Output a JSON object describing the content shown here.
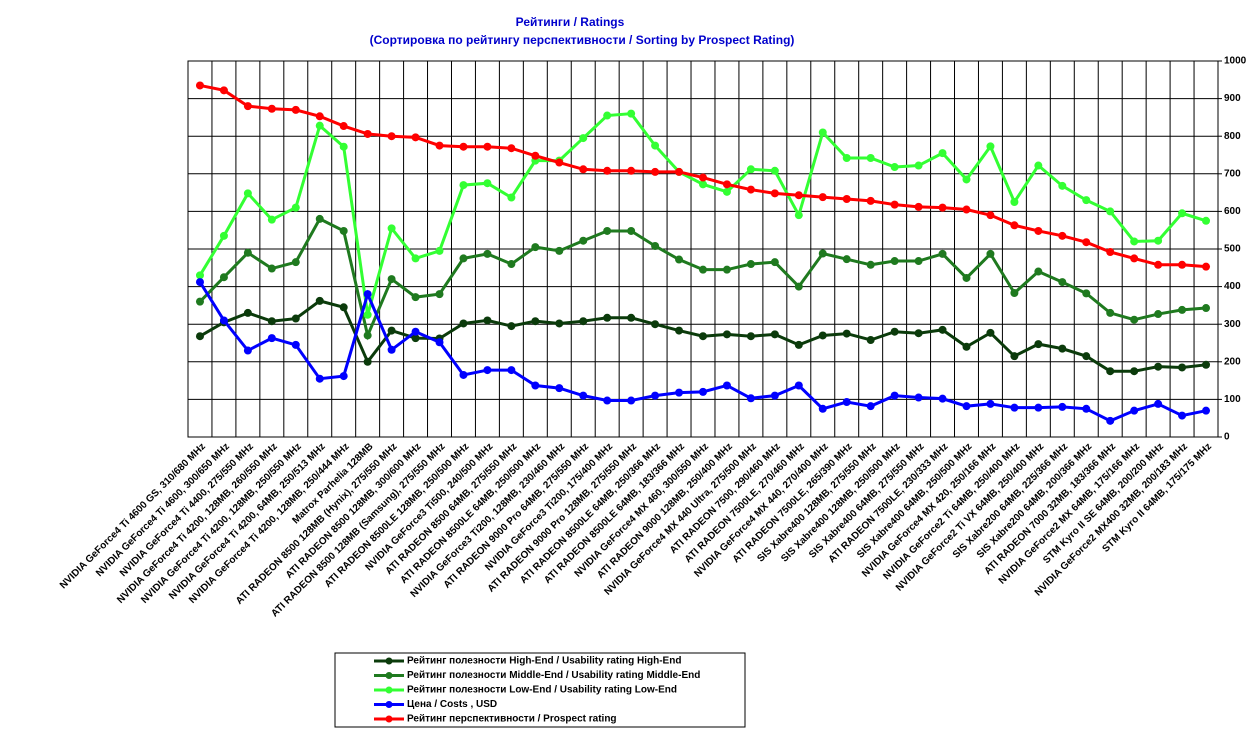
{
  "chart_data": {
    "type": "line",
    "title": "Рейтинги / Ratings",
    "subtitle": "(Сортировка по рейтингу перспективности / Sorting by Prospect Rating)",
    "categories": [
      "NVIDIA GeForce4 Ti 4600 GS, 310/680 MHz",
      "NVIDIA GeForce4 Ti 4600, 300/650 MHz",
      "NVIDIA GeForce4 Ti 4400, 275/550 MHz",
      "NVIDIA GeForce4 Ti 4200, 128MB, 260/550 MHz",
      "NVIDIA GeForce4 Ti 4200, 128MB, 250/550 MHz",
      "NVIDIA GeForce4 Ti 4200, 64MB, 250/513 MHz",
      "NVIDIA GeForce4 Ti 4200, 128MB, 250/444 MHz",
      "Matrox Parhelia 128MB",
      "ATI RADEON 8500 128MB (Hynix), 275/550 MHz",
      "ATI RADEON 8500 128MB, 300/600 MHz",
      "ATI RADEON 8500 128MB (Samsung), 275/550 MHz",
      "ATI RADEON 8500LE 128MB, 250/500 MHz",
      "NVIDIA GeForce3 Ti500, 240/500 MHz",
      "ATI RADEON 8500 64MB, 275/550 MHz",
      "ATI RADEON 8500LE 64MB, 250/500 MHz",
      "NVIDIA GeForce3 Ti200, 128MB, 230/460 MHz",
      "ATI RADEON 9000 Pro 64MB, 275/550 MHz",
      "NVIDIA GeForce3 Ti200, 175/400 MHz",
      "ATI RADEON 9000 Pro 128MB, 275/550 MHz",
      "ATI RADEON 8500LE 64MB, 250/366 MHz",
      "ATI RADEON 8500LE 64MB, 183/366 MHz",
      "NVIDIA GeForce4 MX 460, 300/550 MHz",
      "ATI RADEON 9000 128MB, 250/400 MHz",
      "NVIDIA GeForce4 MX 440 Ultra, 275/500 MHz",
      "ATI RADEON 7500, 290/460 MHz",
      "ATI RADEON 7500LE, 270/460 MHz",
      "NVIDIA GeForce4 MX 440, 270/400 MHz",
      "ATI RADEON 7500LE, 265/390 MHz",
      "SIS Xabre400 128MB, 275/550 MHz",
      "SIS Xabre400 128MB, 250/500 MHz",
      "SIS Xabre400 64MB, 275/550 MHz",
      "ATI RADEON 7500LE, 230/333 MHz",
      "SIS Xabre400 64MB, 250/500 MHz",
      "NVIDIA GeForce4 MX 420, 250/166 MHz",
      "NVIDIA GeForce2 Ti 64MB, 250/400 MHz",
      "NVIDIA GeForce2 Ti VX 64MB, 250/400 MHz",
      "SIS Xabre200 64MB, 225/366 MHz",
      "SIS Xabre200 64MB, 200/366 MHz",
      "ATI RADEON 7000 32MB, 183/366 MHz",
      "NVIDIA GeForce2 MX 64MB, 175/166 MHz",
      "STM Kyro II SE 64MB, 200/200 MHz",
      "NVIDIA GeForce2 MX400 32MB, 200/183 MHz",
      "STM Kyro II 64MB, 175/175 MHz"
    ],
    "series": [
      {
        "name": "Рейтинг полезности High-End / Usability rating High-End",
        "color": "#0b3b0b",
        "values": [
          268,
          305,
          330,
          308,
          315,
          362,
          345,
          200,
          283,
          263,
          262,
          302,
          310,
          295,
          308,
          302,
          308,
          317,
          317,
          300,
          283,
          268,
          273,
          268,
          273,
          245,
          270,
          275,
          258,
          280,
          276,
          285,
          240,
          277,
          215,
          247,
          235,
          215,
          175,
          175,
          187,
          185,
          192
        ]
      },
      {
        "name": "Рейтинг полезности Middle-End / Usability rating Middle-End",
        "color": "#1f7a1f",
        "values": [
          360,
          425,
          490,
          448,
          465,
          580,
          548,
          270,
          420,
          372,
          380,
          475,
          487,
          460,
          505,
          495,
          522,
          548,
          548,
          508,
          472,
          445,
          445,
          460,
          465,
          400,
          488,
          473,
          458,
          468,
          468,
          487,
          423,
          487,
          383,
          440,
          412,
          382,
          330,
          312,
          327,
          338,
          343
        ]
      },
      {
        "name": "Рейтинг полезности Low-End / Usability rating Low-End",
        "color": "#33ff33",
        "values": [
          430,
          535,
          648,
          578,
          610,
          828,
          772,
          325,
          555,
          475,
          495,
          670,
          675,
          637,
          735,
          735,
          795,
          855,
          860,
          775,
          705,
          672,
          652,
          712,
          708,
          590,
          810,
          742,
          742,
          718,
          722,
          755,
          685,
          773,
          625,
          722,
          668,
          630,
          600,
          520,
          522,
          595,
          575
        ]
      },
      {
        "name": "Цена / Costs , USD",
        "color": "#0000ff",
        "values": [
          412,
          310,
          230,
          263,
          245,
          155,
          162,
          380,
          232,
          280,
          252,
          165,
          178,
          178,
          137,
          130,
          110,
          97,
          97,
          110,
          118,
          120,
          137,
          103,
          110,
          137,
          75,
          93,
          82,
          110,
          105,
          102,
          82,
          88,
          78,
          78,
          80,
          75,
          43,
          70,
          88,
          57,
          70
        ]
      },
      {
        "name": "Рейтинг перспективности / Prospect rating",
        "color": "#ff0000",
        "values": [
          935,
          922,
          880,
          873,
          870,
          853,
          827,
          806,
          800,
          797,
          775,
          772,
          772,
          768,
          748,
          730,
          712,
          708,
          708,
          705,
          705,
          690,
          672,
          658,
          648,
          643,
          638,
          633,
          628,
          618,
          612,
          610,
          605,
          590,
          563,
          548,
          535,
          518,
          492,
          475,
          458,
          458,
          453
        ]
      }
    ],
    "ylim": [
      0,
      1000
    ],
    "yticks": [
      0,
      100,
      200,
      300,
      400,
      500,
      600,
      700,
      800,
      900,
      1000
    ],
    "grid": true
  }
}
